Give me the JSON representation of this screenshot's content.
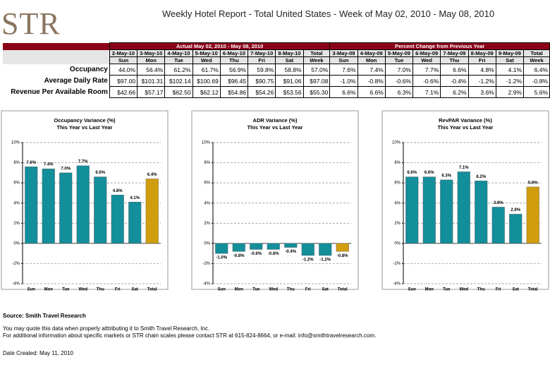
{
  "header": {
    "logo": "STR",
    "title": "Weekly Hotel Report - Total United States - Week of May 02, 2010 - May 08, 2010"
  },
  "table": {
    "groups": [
      "Actual May 02, 2010 - May 08, 2010",
      "Percent Change from Previous Year"
    ],
    "dates": [
      "2-May-10",
      "3-May-10",
      "4-May-10",
      "5-May-10",
      "6-May-10",
      "7-May-10",
      "8-May-10",
      "Total",
      "3-May-09",
      "4-May-09",
      "5-May-09",
      "6-May-09",
      "7-May-09",
      "8-May-09",
      "9-May-09",
      "Total"
    ],
    "days": [
      "Sun",
      "Mon",
      "Tue",
      "Wed",
      "Thu",
      "Fri",
      "Sat",
      "Week",
      "Sun",
      "Mon",
      "Tue",
      "Wed",
      "Thu",
      "Fri",
      "Sat",
      "Week"
    ],
    "rows": [
      [
        "Occupancy",
        "44.0%",
        "56.4%",
        "61.2%",
        "61.7%",
        "56.9%",
        "59.8%",
        "58.8%",
        "57.0%",
        "7.6%",
        "7.4%",
        "7.0%",
        "7.7%",
        "6.6%",
        "4.8%",
        "4.1%",
        "6.4%"
      ],
      [
        "Average Daily Rate",
        "$97.00",
        "$101.31",
        "$102.14",
        "$100.69",
        "$96.45",
        "$90.75",
        "$91.06",
        "$97.08",
        "-1.0%",
        "-0.8%",
        "-0.6%",
        "-0.6%",
        "-0.4%",
        "-1.2%",
        "-1.2%",
        "-0.8%"
      ],
      [
        "Revenue Per Available Room",
        "$42.66",
        "$57.17",
        "$62.50",
        "$62.12",
        "$54.86",
        "$54.26",
        "$53.56",
        "$55.30",
        "6.6%",
        "6.6%",
        "6.3%",
        "7.1%",
        "6.2%",
        "3.6%",
        "2.9%",
        "5.6%"
      ]
    ]
  },
  "chart_data": [
    {
      "type": "bar",
      "title": "Occupancy Variance (%)",
      "subtitle": "This Year vs Last Year",
      "categories": [
        "Sun",
        "Mon",
        "Tue",
        "Wed",
        "Thu",
        "Fri",
        "Sat",
        "Total"
      ],
      "values": [
        7.6,
        7.4,
        7.0,
        7.7,
        6.6,
        4.8,
        4.1,
        6.4
      ],
      "value_labels": [
        "7.6%",
        "7.4%",
        "7.0%",
        "7.7%",
        "6.6%",
        "4.8%",
        "4.1%",
        "6.4%"
      ],
      "colors": [
        "#138e9b",
        "#138e9b",
        "#138e9b",
        "#138e9b",
        "#138e9b",
        "#138e9b",
        "#138e9b",
        "#d09d0c"
      ],
      "ylim": [
        -4,
        10
      ],
      "yticks": [
        {
          "value": -4,
          "label": "-4%"
        },
        {
          "value": -2,
          "label": "-2%"
        },
        {
          "value": 0,
          "label": "0%"
        },
        {
          "value": 2,
          "label": "2%"
        },
        {
          "value": 4,
          "label": "4%"
        },
        {
          "value": 6,
          "label": "6%"
        },
        {
          "value": 8,
          "label": "8%"
        },
        {
          "value": 10,
          "label": "10%"
        }
      ],
      "grid": true
    },
    {
      "type": "bar",
      "title": "ADR Variance (%)",
      "subtitle": "This Year vs Last Year",
      "categories": [
        "Sun",
        "Mon",
        "Tue",
        "Wed",
        "Thu",
        "Fri",
        "Sat",
        "Total"
      ],
      "values": [
        -1.0,
        -0.8,
        -0.6,
        -0.6,
        -0.4,
        -1.2,
        -1.2,
        -0.8
      ],
      "value_labels": [
        "-1.0%",
        "-0.8%",
        "-0.6%",
        "-0.6%",
        "-0.4%",
        "-1.2%",
        "-1.2%",
        "-0.8%"
      ],
      "colors": [
        "#138e9b",
        "#138e9b",
        "#138e9b",
        "#138e9b",
        "#138e9b",
        "#138e9b",
        "#138e9b",
        "#d09d0c"
      ],
      "ylim": [
        -4,
        10
      ],
      "yticks": [
        {
          "value": -4,
          "label": "-4%"
        },
        {
          "value": -2,
          "label": "-2%"
        },
        {
          "value": 0,
          "label": "0%"
        },
        {
          "value": 2,
          "label": "2%"
        },
        {
          "value": 4,
          "label": "4%"
        },
        {
          "value": 6,
          "label": "6%"
        },
        {
          "value": 8,
          "label": "8%"
        },
        {
          "value": 10,
          "label": "10%"
        }
      ],
      "grid": true
    },
    {
      "type": "bar",
      "title": "RevPAR Variance (%)",
      "subtitle": "This Year vs Last Year",
      "categories": [
        "Sun",
        "Mon",
        "Tue",
        "Wed",
        "Thu",
        "Fri",
        "Sat",
        "Total"
      ],
      "values": [
        6.6,
        6.6,
        6.3,
        7.1,
        6.2,
        3.6,
        2.9,
        5.6
      ],
      "value_labels": [
        "6.6%",
        "6.6%",
        "6.3%",
        "7.1%",
        "6.2%",
        "3.6%",
        "2.9%",
        "5.6%"
      ],
      "colors": [
        "#138e9b",
        "#138e9b",
        "#138e9b",
        "#138e9b",
        "#138e9b",
        "#138e9b",
        "#138e9b",
        "#d09d0c"
      ],
      "ylim": [
        -4,
        10
      ],
      "yticks": [
        {
          "value": -4,
          "label": "-4%"
        },
        {
          "value": -2,
          "label": "-2%"
        },
        {
          "value": 0,
          "label": "0%"
        },
        {
          "value": 2,
          "label": "2%"
        },
        {
          "value": 4,
          "label": "4%"
        },
        {
          "value": 6,
          "label": "6%"
        },
        {
          "value": 8,
          "label": "8%"
        },
        {
          "value": 10,
          "label": "10%"
        }
      ],
      "grid": true
    }
  ],
  "footer": {
    "source": "Source: Smith Travel Research",
    "notes": [
      "You may quote this data when properly atttributing it to Smith Travel Research, Inc.",
      "For additional information about specific markets or STR chain scales please contact STR at 615-824-8664, or e-mail: info@smithtravelresearch.com."
    ],
    "date": "Date Created: May 11, 2010"
  }
}
